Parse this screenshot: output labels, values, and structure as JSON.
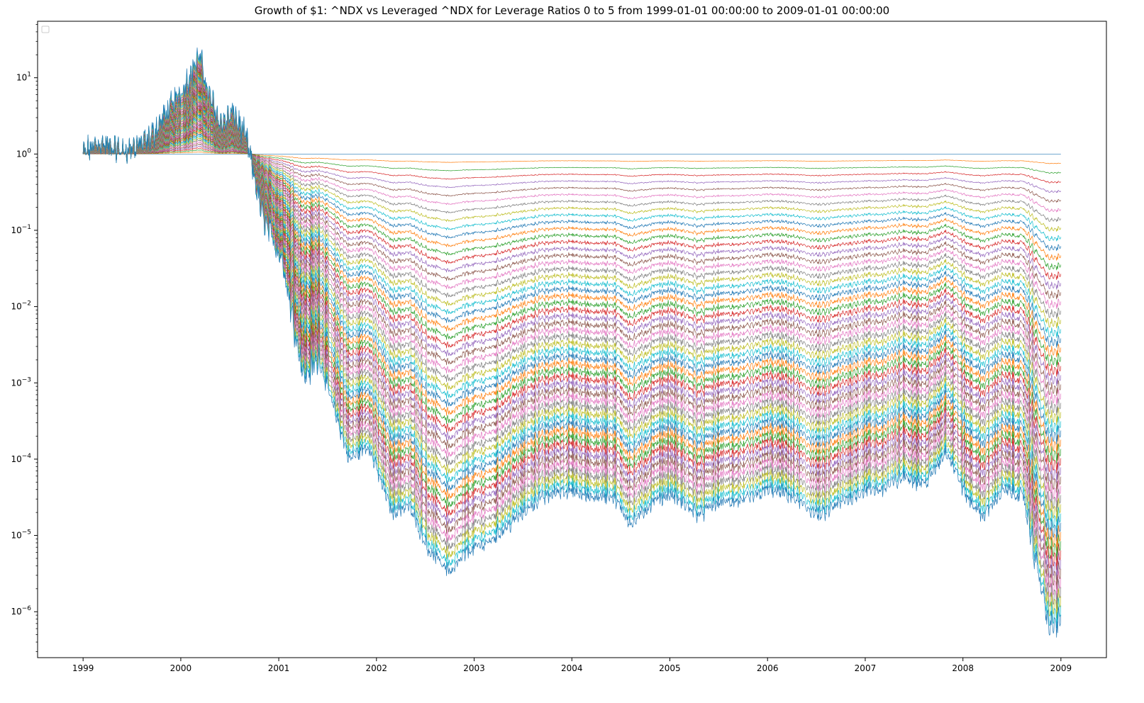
{
  "chart_data": {
    "type": "line",
    "title": "Growth of $1: ^NDX vs Leveraged ^NDX for Leverage Ratios 0 to 5 from 1999-01-01 00:00:00 to 2009-01-01 00:00:00",
    "xlabel": "",
    "ylabel": "",
    "y_scale": "log",
    "ylim": [
      2.5e-07,
      55
    ],
    "xlim": [
      "1998-07-15",
      "2009-06-20"
    ],
    "grid": false,
    "legend": "top-left (empty)",
    "x_ticks": [
      "1999",
      "2000",
      "2001",
      "2002",
      "2003",
      "2004",
      "2005",
      "2006",
      "2007",
      "2008",
      "2009"
    ],
    "y_ticks": [
      {
        "base": "10",
        "exp": "1",
        "value": 10
      },
      {
        "base": "10",
        "exp": "0",
        "value": 1
      },
      {
        "base": "10",
        "exp": "−1",
        "value": 0.1
      },
      {
        "base": "10",
        "exp": "−2",
        "value": 0.01
      },
      {
        "base": "10",
        "exp": "−3",
        "value": 0.001
      },
      {
        "base": "10",
        "exp": "−4",
        "value": 0.0001
      },
      {
        "base": "10",
        "exp": "−5",
        "value": 1e-05
      },
      {
        "base": "10",
        "exp": "−6",
        "value": 1e-06
      }
    ],
    "series_count": 51,
    "leverage_range": [
      0,
      5
    ],
    "series_colors": [
      "#1f77b4",
      "#ff7f0e",
      "#2ca02c",
      "#d62728",
      "#9467bd",
      "#8c564b",
      "#e377c2",
      "#7f7f7f",
      "#bcbd22",
      "#17becf"
    ],
    "reference_curve_highest_leverage": {
      "dates": [
        "1999-01-01",
        "1999-03-01",
        "1999-06-01",
        "1999-09-01",
        "1999-12-01",
        "2000-01-15",
        "2000-03-10",
        "2000-04-15",
        "2000-06-01",
        "2000-07-15",
        "2000-09-01",
        "2000-11-01",
        "2001-01-15",
        "2001-03-01",
        "2001-04-05",
        "2001-06-01",
        "2001-09-21",
        "2001-12-01",
        "2002-03-01",
        "2002-05-01",
        "2002-07-20",
        "2002-10-09",
        "2002-12-01",
        "2003-03-01",
        "2003-06-01",
        "2003-09-01",
        "2003-12-01",
        "2004-03-01",
        "2004-06-01",
        "2004-08-12",
        "2004-11-01",
        "2005-01-01",
        "2005-04-20",
        "2005-07-01",
        "2005-10-01",
        "2006-01-01",
        "2006-03-15",
        "2006-07-15",
        "2006-10-01",
        "2007-01-01",
        "2007-03-01",
        "2007-06-01",
        "2007-08-15",
        "2007-10-31",
        "2008-01-20",
        "2008-03-15",
        "2008-06-01",
        "2008-08-15",
        "2008-10-10",
        "2008-11-20",
        "2009-01-01"
      ],
      "values": [
        1,
        1.4,
        1.1,
        1.5,
        4.5,
        8,
        20,
        6,
        2.5,
        3.5,
        1.6,
        0.15,
        0.04,
        0.005,
        0.0012,
        0.002,
        0.0001,
        0.00015,
        2e-05,
        2.5e-05,
        6e-06,
        3.3e-06,
        6e-06,
        8.5e-06,
        1.6e-05,
        3e-05,
        4e-05,
        3.2e-05,
        3.3e-05,
        1.4e-05,
        2.8e-05,
        3.5e-05,
        1.9e-05,
        2.7e-05,
        2.8e-05,
        4e-05,
        3.5e-05,
        1.8e-05,
        2.7e-05,
        4e-05,
        4e-05,
        6e-05,
        4.8e-05,
        0.00013,
        3e-05,
        1.8e-05,
        4e-05,
        3.2e-05,
        3e-06,
        6e-07,
        8e-07
      ]
    }
  }
}
